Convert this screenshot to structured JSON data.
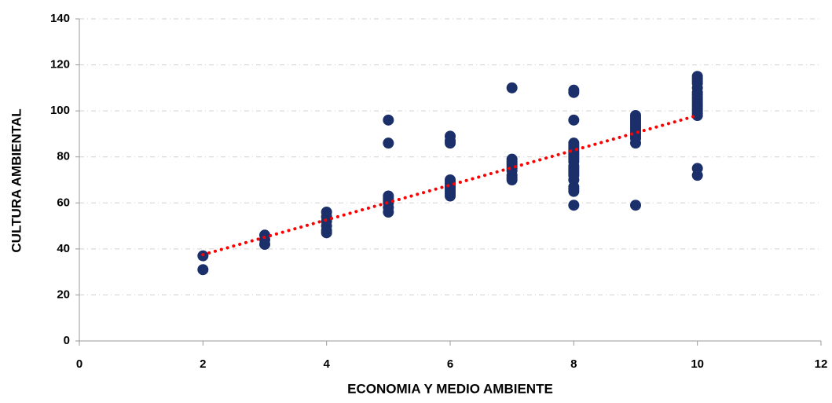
{
  "chart_data": {
    "type": "scatter",
    "xlabel": "ECONOMIA Y MEDIO AMBIENTE",
    "ylabel": "CULTURA AMBIENTAL",
    "series": [
      {
        "color": "#1b2f6b",
        "x": [
          2,
          2,
          3,
          3,
          3,
          4,
          4,
          4,
          4,
          4,
          4,
          5,
          5,
          5,
          5,
          5,
          5,
          5,
          5,
          6,
          6,
          6,
          6,
          6,
          6,
          6,
          6,
          6,
          6,
          6,
          7,
          7,
          7,
          7,
          7,
          7,
          7,
          7,
          7,
          7,
          8,
          8,
          8,
          8,
          8,
          8,
          8,
          8,
          8,
          8,
          8,
          8,
          8,
          8,
          8,
          8,
          8,
          8,
          8,
          8,
          8,
          8,
          9,
          9,
          9,
          9,
          9,
          9,
          9,
          9,
          9,
          9,
          9,
          9,
          9,
          10,
          10,
          10,
          10,
          10,
          10,
          10,
          10,
          10,
          10,
          10,
          10,
          10,
          10,
          10,
          10,
          10,
          10
        ],
        "y": [
          37,
          31,
          46,
          44,
          42,
          56,
          54,
          52,
          50,
          48,
          47,
          96,
          86,
          63,
          62,
          61,
          60,
          58,
          56,
          89,
          87,
          86,
          70,
          69,
          68,
          67,
          66,
          65,
          64,
          63,
          110,
          79,
          78,
          77,
          76,
          75,
          74,
          72,
          71,
          70,
          109,
          108,
          96,
          86,
          85,
          84,
          83,
          82,
          81,
          80,
          79,
          78,
          76,
          75,
          74,
          73,
          72,
          70,
          67,
          66,
          65,
          59,
          98,
          97,
          96,
          95,
          94,
          93,
          92,
          91,
          90,
          89,
          88,
          86,
          59,
          115,
          114,
          113,
          112,
          110,
          108,
          107,
          106,
          105,
          104,
          103,
          102,
          101,
          100,
          99,
          98,
          75,
          72
        ]
      }
    ],
    "trendline": {
      "color": "#ff0000",
      "x": [
        2,
        10
      ],
      "y": [
        37.5,
        98
      ]
    },
    "xlim": [
      0,
      12
    ],
    "xticks": [
      0,
      2,
      4,
      6,
      8,
      10,
      12
    ],
    "ylim": [
      0,
      140
    ],
    "yticks": [
      0,
      20,
      40,
      60,
      80,
      100,
      120,
      140
    ],
    "grid": true
  }
}
